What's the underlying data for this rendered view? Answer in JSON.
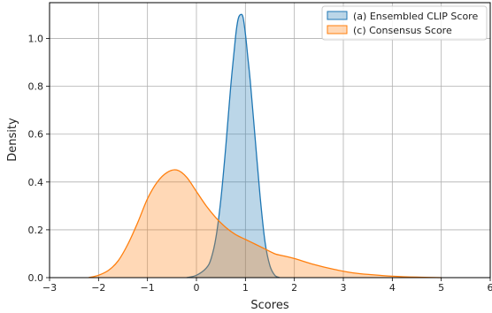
{
  "chart_data": {
    "type": "area",
    "xlabel": "Scores",
    "ylabel": "Density",
    "xlim": [
      -3,
      6
    ],
    "ylim": [
      0,
      1.15
    ],
    "xticks": [
      -3,
      -2,
      -1,
      0,
      1,
      2,
      3,
      4,
      5,
      6
    ],
    "yticks": [
      0.0,
      0.2,
      0.4,
      0.6,
      0.8,
      1.0
    ],
    "xtick_labels": [
      "−3",
      "−2",
      "−1",
      "0",
      "1",
      "2",
      "3",
      "4",
      "5",
      "6"
    ],
    "ytick_labels": [
      "0.0",
      "0.2",
      "0.4",
      "0.6",
      "0.8",
      "1.0"
    ],
    "grid": true,
    "legend_position": "top-right",
    "series": [
      {
        "name": "(a) Ensembled CLIP Score",
        "color": "#1f77b4",
        "x": [
          -0.2,
          0.0,
          0.2,
          0.3,
          0.4,
          0.5,
          0.6,
          0.7,
          0.8,
          0.85,
          0.9,
          0.95,
          1.0,
          1.05,
          1.1,
          1.2,
          1.3,
          1.4,
          1.5,
          1.6,
          1.7
        ],
        "y": [
          0.0,
          0.01,
          0.04,
          0.08,
          0.17,
          0.33,
          0.55,
          0.8,
          1.01,
          1.08,
          1.1,
          1.09,
          1.02,
          0.92,
          0.82,
          0.58,
          0.34,
          0.15,
          0.05,
          0.01,
          0.0
        ]
      },
      {
        "name": "(c) Consensus Score",
        "color": "#ff7f0e",
        "x": [
          -2.2,
          -2.0,
          -1.8,
          -1.6,
          -1.4,
          -1.2,
          -1.0,
          -0.8,
          -0.6,
          -0.4,
          -0.2,
          0.0,
          0.2,
          0.4,
          0.6,
          0.8,
          1.0,
          1.2,
          1.4,
          1.6,
          1.8,
          2.0,
          2.4,
          2.8,
          3.2,
          3.6,
          4.0,
          4.5,
          5.0
        ],
        "y": [
          0.0,
          0.01,
          0.03,
          0.07,
          0.14,
          0.23,
          0.33,
          0.4,
          0.44,
          0.45,
          0.42,
          0.36,
          0.3,
          0.25,
          0.21,
          0.18,
          0.16,
          0.14,
          0.12,
          0.1,
          0.09,
          0.08,
          0.055,
          0.035,
          0.02,
          0.012,
          0.006,
          0.002,
          0.0
        ]
      }
    ]
  }
}
